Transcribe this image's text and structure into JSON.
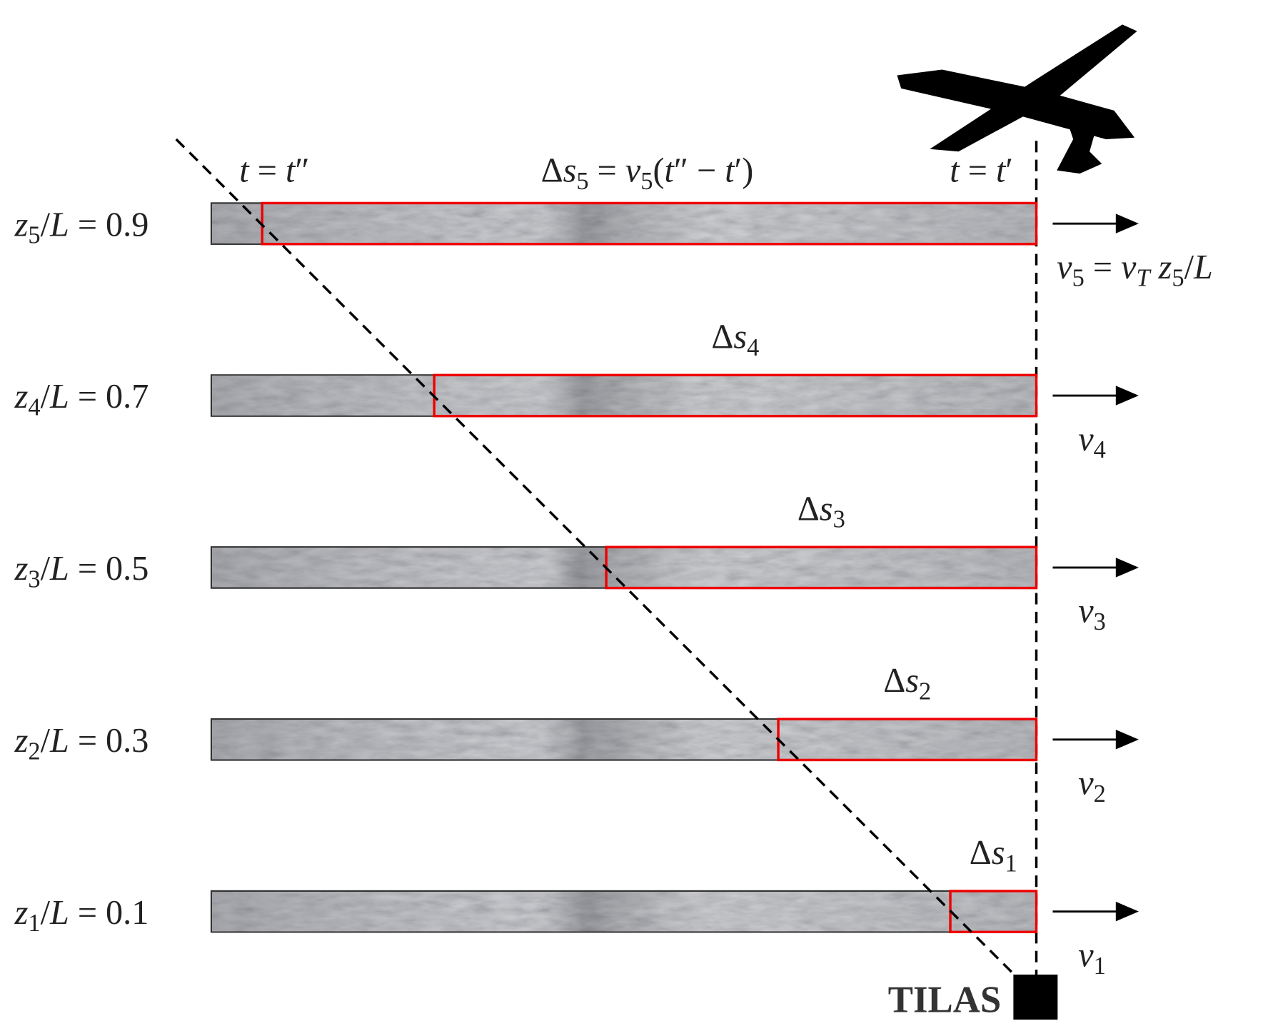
{
  "layers": [
    {
      "label": [
        {
          "text": "z",
          "italic": true
        },
        {
          "text": "5",
          "sub": true
        },
        {
          "text": "/",
          "italic": false
        },
        {
          "text": "L",
          "italic": true
        },
        {
          "text": " = 0.9"
        }
      ],
      "shift": [
        {
          "text": "Δ"
        },
        {
          "text": "s",
          "italic": true
        },
        {
          "text": "5",
          "sub": true
        },
        {
          "text": " = "
        },
        {
          "text": "v",
          "italic": true
        },
        {
          "text": "5",
          "sub": true
        },
        {
          "text": "("
        },
        {
          "text": "t",
          "italic": true
        },
        {
          "text": "″ − "
        },
        {
          "text": "t",
          "italic": true
        },
        {
          "text": "′)"
        }
      ],
      "velocity": [
        {
          "text": "v",
          "italic": true
        },
        {
          "text": "5",
          "sub": true
        },
        {
          "text": " = "
        },
        {
          "text": "v",
          "italic": true
        },
        {
          "text": "T",
          "sub": true,
          "italic": true
        },
        {
          "text": " "
        },
        {
          "text": "z",
          "italic": true
        },
        {
          "text": "5",
          "sub": true
        },
        {
          "text": "/"
        },
        {
          "text": "L",
          "italic": true
        }
      ]
    },
    {
      "label": [
        {
          "text": "z",
          "italic": true
        },
        {
          "text": "4",
          "sub": true
        },
        {
          "text": "/"
        },
        {
          "text": "L",
          "italic": true
        },
        {
          "text": " = 0.7"
        }
      ],
      "shift": [
        {
          "text": "Δ"
        },
        {
          "text": "s",
          "italic": true
        },
        {
          "text": "4",
          "sub": true
        }
      ],
      "velocity": [
        {
          "text": "v",
          "italic": true
        },
        {
          "text": "4",
          "sub": true
        }
      ]
    },
    {
      "label": [
        {
          "text": "z",
          "italic": true
        },
        {
          "text": "3",
          "sub": true
        },
        {
          "text": "/"
        },
        {
          "text": "L",
          "italic": true
        },
        {
          "text": " = 0.5"
        }
      ],
      "shift": [
        {
          "text": "Δ"
        },
        {
          "text": "s",
          "italic": true
        },
        {
          "text": "3",
          "sub": true
        }
      ],
      "velocity": [
        {
          "text": "v",
          "italic": true
        },
        {
          "text": "3",
          "sub": true
        }
      ]
    },
    {
      "label": [
        {
          "text": "z",
          "italic": true
        },
        {
          "text": "2",
          "sub": true
        },
        {
          "text": "/"
        },
        {
          "text": "L",
          "italic": true
        },
        {
          "text": " = 0.3"
        }
      ],
      "shift": [
        {
          "text": "Δ"
        },
        {
          "text": "s",
          "italic": true
        },
        {
          "text": "2",
          "sub": true
        }
      ],
      "velocity": [
        {
          "text": "v",
          "italic": true
        },
        {
          "text": "2",
          "sub": true
        }
      ]
    },
    {
      "label": [
        {
          "text": "z",
          "italic": true
        },
        {
          "text": "1",
          "sub": true
        },
        {
          "text": "/"
        },
        {
          "text": "L",
          "italic": true
        },
        {
          "text": " = 0.1"
        }
      ],
      "shift": [
        {
          "text": "Δ"
        },
        {
          "text": "s",
          "italic": true
        },
        {
          "text": "1",
          "sub": true
        }
      ],
      "velocity": [
        {
          "text": "v",
          "italic": true
        },
        {
          "text": "1",
          "sub": true
        }
      ]
    }
  ],
  "time_end": [
    {
      "text": "t",
      "italic": true
    },
    {
      "text": " = "
    },
    {
      "text": "t",
      "italic": true
    },
    {
      "text": "″"
    }
  ],
  "time_start": [
    {
      "text": "t",
      "italic": true
    },
    {
      "text": " = "
    },
    {
      "text": "t",
      "italic": true
    },
    {
      "text": "′"
    }
  ],
  "station": "TILAS"
}
